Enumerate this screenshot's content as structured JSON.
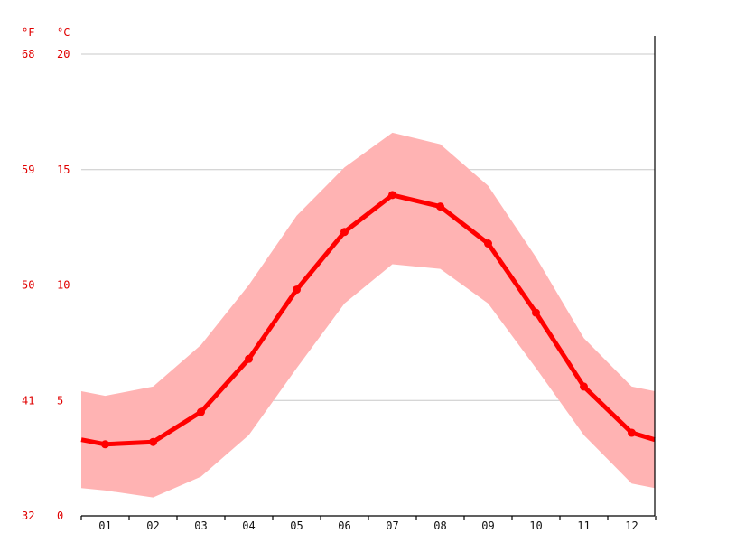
{
  "chart_data": {
    "type": "line",
    "categories": [
      "01",
      "02",
      "03",
      "04",
      "05",
      "06",
      "07",
      "08",
      "09",
      "10",
      "11",
      "12"
    ],
    "series": [
      {
        "values": [
          3.1,
          3.2,
          4.5,
          6.8,
          9.8,
          12.3,
          13.9,
          13.4,
          11.8,
          8.8,
          5.6,
          3.6
        ],
        "color": "#ff0000"
      }
    ],
    "band": {
      "upper": [
        5.2,
        5.6,
        7.4,
        10.0,
        13.0,
        15.1,
        16.6,
        16.1,
        14.3,
        11.2,
        7.7,
        5.6
      ],
      "lower": [
        1.1,
        0.8,
        1.7,
        3.5,
        6.4,
        9.2,
        10.9,
        10.7,
        9.2,
        6.4,
        3.5,
        1.4
      ],
      "edge_upper": [
        5.4,
        5.4
      ],
      "edge_lower": [
        1.2,
        1.2
      ],
      "color": "#ffb3b3"
    },
    "edge_values": [
      3.3,
      3.3
    ],
    "yunits": {
      "left": "°F",
      "right": "°C"
    },
    "yticks_f": [
      "32",
      "41",
      "50",
      "59",
      "68"
    ],
    "yticks_c": [
      "0",
      "5",
      "10",
      "15",
      "20"
    ],
    "ylim": [
      0,
      20
    ],
    "grid": true,
    "xlabel": "",
    "ylabel": ""
  }
}
